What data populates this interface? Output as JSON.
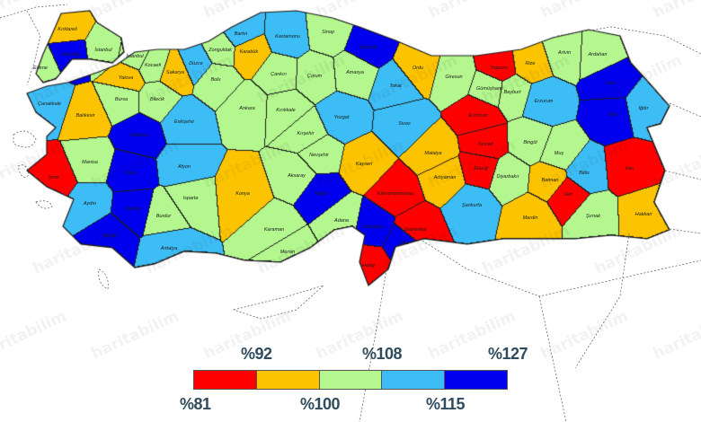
{
  "watermark": "haritabilim",
  "colors": {
    "c1": "#ff0000",
    "c2": "#fcc400",
    "c3": "#b3f78e",
    "c4": "#3dbdf5",
    "c5": "#0000ee",
    "border": "#1c1c1c"
  },
  "legend": {
    "stops": [
      "%81",
      "%92",
      "%100",
      "%108",
      "%115",
      "%127"
    ],
    "classes": [
      "c1",
      "c2",
      "c3",
      "c4",
      "c5"
    ]
  },
  "provinces": [
    {
      "name": "Kırklareli",
      "cls": "c2"
    },
    {
      "name": "Edirne",
      "cls": "c3"
    },
    {
      "name": "Tekirdağ",
      "cls": "c5"
    },
    {
      "name": "İstanbul",
      "cls": "c3"
    },
    {
      "name": "İstanbul",
      "cls": "c3"
    },
    {
      "name": "Kocaeli",
      "cls": "c3"
    },
    {
      "name": "Yalova",
      "cls": "c2"
    },
    {
      "name": "Sakarya",
      "cls": "c2"
    },
    {
      "name": "Düzce",
      "cls": "c4"
    },
    {
      "name": "Bolu",
      "cls": "c3"
    },
    {
      "name": "Zonguldak",
      "cls": "c3"
    },
    {
      "name": "Bartın",
      "cls": "c4"
    },
    {
      "name": "Karabük",
      "cls": "c2"
    },
    {
      "name": "Kastamonu",
      "cls": "c4"
    },
    {
      "name": "Sinop",
      "cls": "c3"
    },
    {
      "name": "Samsun",
      "cls": "c5"
    },
    {
      "name": "Çankırı",
      "cls": "c3"
    },
    {
      "name": "Çorum",
      "cls": "c3"
    },
    {
      "name": "Amasya",
      "cls": "c3"
    },
    {
      "name": "Tokat",
      "cls": "c4"
    },
    {
      "name": "Ordu",
      "cls": "c2"
    },
    {
      "name": "Giresun",
      "cls": "c3"
    },
    {
      "name": "Trabzon",
      "cls": "c1"
    },
    {
      "name": "Rize",
      "cls": "c2"
    },
    {
      "name": "Artvin",
      "cls": "c3"
    },
    {
      "name": "Ardahan",
      "cls": "c3"
    },
    {
      "name": "Gümüşhane",
      "cls": "c3"
    },
    {
      "name": "Bayburt",
      "cls": "c3"
    },
    {
      "name": "Kars",
      "cls": "c5"
    },
    {
      "name": "Iğdır",
      "cls": "c4"
    },
    {
      "name": "Ağrı",
      "cls": "c5"
    },
    {
      "name": "Erzurum",
      "cls": "c4"
    },
    {
      "name": "Erzincan",
      "cls": "c1"
    },
    {
      "name": "Tunceli",
      "cls": "c1"
    },
    {
      "name": "Elazığ",
      "cls": "c1"
    },
    {
      "name": "Bingöl",
      "cls": "c3"
    },
    {
      "name": "Muş",
      "cls": "c3"
    },
    {
      "name": "Bitlis",
      "cls": "c4"
    },
    {
      "name": "Van",
      "cls": "c1"
    },
    {
      "name": "Siirt",
      "cls": "c1"
    },
    {
      "name": "Hakkari",
      "cls": "c2"
    },
    {
      "name": "Şırnak",
      "cls": "c3"
    },
    {
      "name": "Batman",
      "cls": "c2"
    },
    {
      "name": "Mardin",
      "cls": "c2"
    },
    {
      "name": "Diyarbakır",
      "cls": "c3"
    },
    {
      "name": "Şanlıurfa",
      "cls": "c4"
    },
    {
      "name": "Adıyaman",
      "cls": "c2"
    },
    {
      "name": "Malatya",
      "cls": "c2"
    },
    {
      "name": "Kahramanmaraş",
      "cls": "c1"
    },
    {
      "name": "Gaziantep",
      "cls": "c1"
    },
    {
      "name": "Kilis",
      "cls": "c5"
    },
    {
      "name": "Osmaniye",
      "cls": "c5"
    },
    {
      "name": "Hatay",
      "cls": "c1"
    },
    {
      "name": "Adana",
      "cls": "c3"
    },
    {
      "name": "Mersin",
      "cls": "c3"
    },
    {
      "name": "Karaman",
      "cls": "c3"
    },
    {
      "name": "Niğde",
      "cls": "c5"
    },
    {
      "name": "Aksaray",
      "cls": "c3"
    },
    {
      "name": "Nevşehir",
      "cls": "c3"
    },
    {
      "name": "Kırşehir",
      "cls": "c3"
    },
    {
      "name": "Kırıkkale",
      "cls": "c3"
    },
    {
      "name": "Ankara",
      "cls": "c3"
    },
    {
      "name": "Yozgat",
      "cls": "c4"
    },
    {
      "name": "Sivas",
      "cls": "c4"
    },
    {
      "name": "Kayseri",
      "cls": "c2"
    },
    {
      "name": "Konya",
      "cls": "c2"
    },
    {
      "name": "Eskişehir",
      "cls": "c4"
    },
    {
      "name": "Bilecik",
      "cls": "c3"
    },
    {
      "name": "Bursa",
      "cls": "c3"
    },
    {
      "name": "Balıkesir",
      "cls": "c2"
    },
    {
      "name": "Çanakkale",
      "cls": "c4"
    },
    {
      "name": "İzmir",
      "cls": "c1"
    },
    {
      "name": "Manisa",
      "cls": "c3"
    },
    {
      "name": "Aydın",
      "cls": "c4"
    },
    {
      "name": "Muğla",
      "cls": "c5"
    },
    {
      "name": "Denizli",
      "cls": "c5"
    },
    {
      "name": "Uşak",
      "cls": "c5"
    },
    {
      "name": "Kütahya",
      "cls": "c5"
    },
    {
      "name": "Afyon",
      "cls": "c4"
    },
    {
      "name": "Isparta",
      "cls": "c3"
    },
    {
      "name": "Burdur",
      "cls": "c3"
    },
    {
      "name": "Antalya",
      "cls": "c4"
    }
  ]
}
